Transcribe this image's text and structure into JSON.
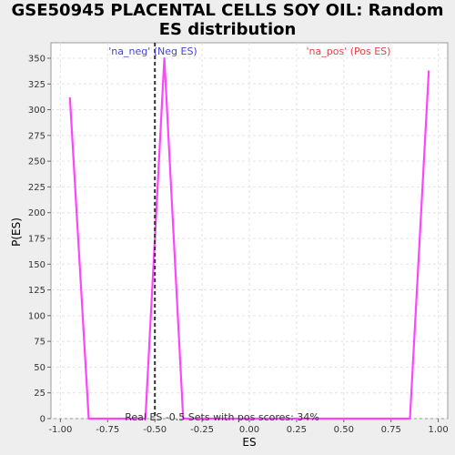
{
  "title_line1": "GSE50945 PLACENTAL CELLS SOY OIL: Random",
  "title_line2": "ES distribution",
  "chart_data": {
    "type": "line",
    "xlabel": "ES",
    "ylabel": "P(ES)",
    "xlim": [
      -1.05,
      1.05
    ],
    "ylim": [
      0,
      365
    ],
    "xticks": [
      -1.0,
      -0.75,
      -0.5,
      -0.25,
      0.0,
      0.25,
      0.5,
      0.75,
      1.0
    ],
    "xtick_labels": [
      "-1.00",
      "-0.75",
      "-0.50",
      "-0.25",
      "0.00",
      "0.25",
      "0.50",
      "0.75",
      "1.00"
    ],
    "yticks": [
      0,
      25,
      50,
      75,
      100,
      125,
      150,
      175,
      200,
      225,
      250,
      275,
      300,
      325,
      350
    ],
    "ytick_labels": [
      "0",
      "25",
      "50",
      "75",
      "100",
      "125",
      "150",
      "175",
      "200",
      "225",
      "250",
      "275",
      "300",
      "325",
      "350"
    ],
    "grid": true,
    "series": [
      {
        "color": "#ff44ff",
        "x": [
          -0.95,
          -0.85,
          -0.75,
          -0.65,
          -0.55,
          -0.45,
          -0.35,
          -0.25,
          -0.15,
          -0.05,
          0.05,
          0.15,
          0.25,
          0.35,
          0.45,
          0.55,
          0.65,
          0.75,
          0.85,
          0.95
        ],
        "y": [
          312,
          0,
          0,
          0,
          0,
          350,
          0,
          0,
          0,
          0,
          0,
          0,
          0,
          0,
          0,
          0,
          0,
          0,
          0,
          338
        ]
      }
    ],
    "real_es": -0.5,
    "annotations": {
      "neg_label": "'na_neg' (Neg ES)",
      "neg_color": "#4444cc",
      "pos_label": "'na_pos' (Pos ES)",
      "pos_color": "#dd4444",
      "footer": "Real ES -0.5 Sets with pos scores: 34%"
    }
  }
}
